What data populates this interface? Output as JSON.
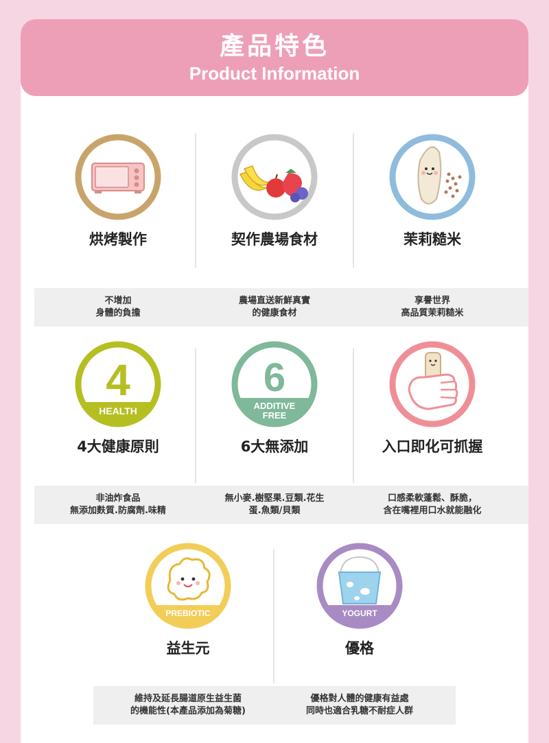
{
  "header": {
    "title_zh": "產品特色",
    "title_en": "Product Information"
  },
  "rows": [
    {
      "items": [
        {
          "icon": "oven-icon",
          "ring": "#c9a46a",
          "title": "烘烤製作",
          "desc1": "不增加",
          "desc2": "身體的負擔"
        },
        {
          "icon": "fruit-icon",
          "ring": "#c8c8c8",
          "title": "契作農場食材",
          "desc1": "農場直送新鮮真實",
          "desc2": "的健康食材"
        },
        {
          "icon": "rice-icon",
          "ring": "#8fbcdc",
          "title": "茉莉糙米",
          "desc1": "享譽世界",
          "desc2": "高品質茉莉糙米"
        }
      ]
    },
    {
      "items": [
        {
          "icon": "health-4-icon",
          "ring": "#b6bf22",
          "badge_num": "4",
          "badge_text": "HEALTH",
          "title": "4大健康原則",
          "desc1": "非油炸食品",
          "desc2": "無添加麩質.防腐劑.味精"
        },
        {
          "icon": "additive-free-6-icon",
          "ring": "#7fb89a",
          "badge_num": "6",
          "badge_text1": "ADDITIVE",
          "badge_text2": "FREE",
          "title": "6大無添加",
          "desc1": "無小麥.樹堅果.豆類.花生",
          "desc2": "蛋.魚類/貝類"
        },
        {
          "icon": "hand-grip-icon",
          "ring": "#ee8f97",
          "title": "入口即化可抓握",
          "desc1": "口感柔軟蓬鬆、酥脆，",
          "desc2": "含在嘴裡用口水就能融化"
        }
      ]
    },
    {
      "items": [
        {
          "icon": "prebiotic-icon",
          "ring": "#f2cd57",
          "badge_text": "PREBIOTIC",
          "title": "益生元",
          "desc1": "維持及延長腸道原生益生菌",
          "desc2": "的機能性(本產品添加為菊糖)"
        },
        {
          "icon": "yogurt-icon",
          "ring": "#a98bc4",
          "badge_text": "YOGURT",
          "title": "優格",
          "desc1": "優格對人體的健康有益處",
          "desc2": "同時也適合乳糖不耐症人群"
        }
      ]
    }
  ]
}
